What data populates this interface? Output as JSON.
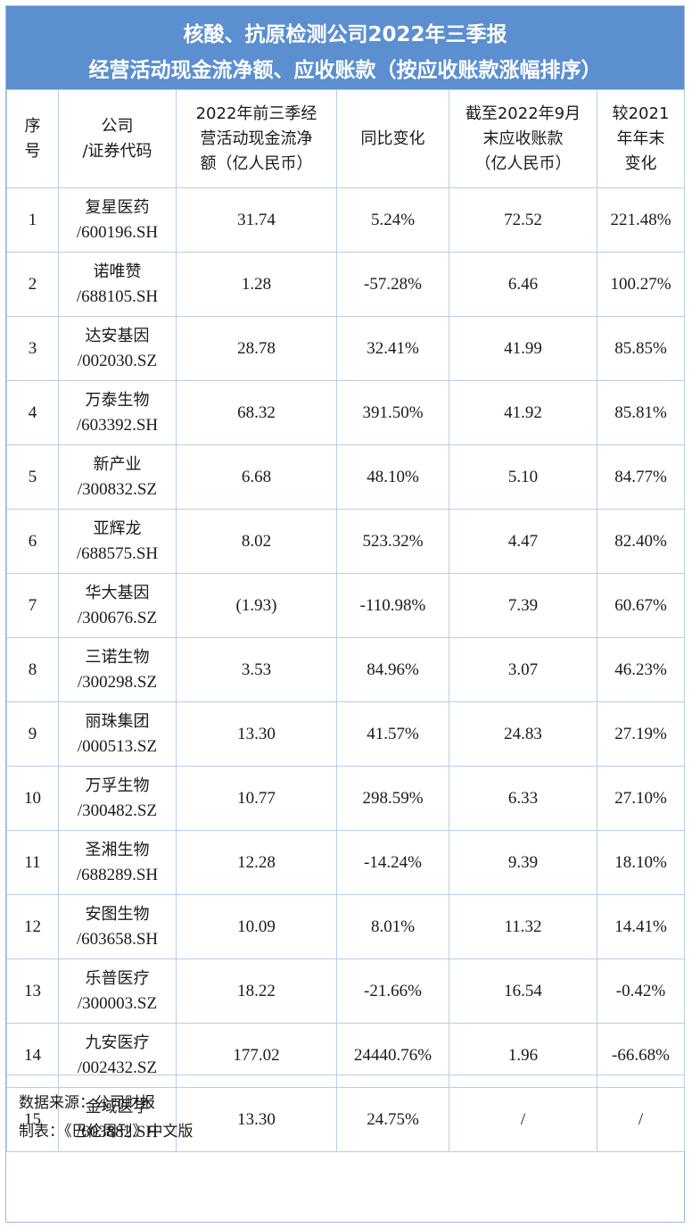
{
  "title": {
    "line1": "核酸、抗原检测公司2022年三季报",
    "line2": "经营活动现金流净额、应收账款（按应收账款涨幅排序）"
  },
  "headers": {
    "seq": [
      "序",
      "号"
    ],
    "company": [
      "公司",
      "/证券代码"
    ],
    "cashflow": [
      "2022年前三季经",
      "营活动现金流净",
      "额（亿人民币）"
    ],
    "yoy": [
      "同比变化"
    ],
    "receivables": [
      "截至2022年9月",
      "末应收账款",
      "（亿人民币）"
    ],
    "change": [
      "较2021",
      "年年末",
      "变化"
    ]
  },
  "rows": [
    {
      "seq": "1",
      "name": "复星医药",
      "code": "/600196.SH",
      "cashflow": "31.74",
      "yoy": "5.24%",
      "receivables": "72.52",
      "change": "221.48%"
    },
    {
      "seq": "2",
      "name": "诺唯赞",
      "code": "/688105.SH",
      "cashflow": "1.28",
      "yoy": "-57.28%",
      "receivables": "6.46",
      "change": "100.27%"
    },
    {
      "seq": "3",
      "name": "达安基因",
      "code": "/002030.SZ",
      "cashflow": "28.78",
      "yoy": "32.41%",
      "receivables": "41.99",
      "change": "85.85%"
    },
    {
      "seq": "4",
      "name": "万泰生物",
      "code": "/603392.SH",
      "cashflow": "68.32",
      "yoy": "391.50%",
      "receivables": "41.92",
      "change": "85.81%"
    },
    {
      "seq": "5",
      "name": "新产业",
      "code": "/300832.SZ",
      "cashflow": "6.68",
      "yoy": "48.10%",
      "receivables": "5.10",
      "change": "84.77%"
    },
    {
      "seq": "6",
      "name": "亚辉龙",
      "code": "/688575.SH",
      "cashflow": "8.02",
      "yoy": "523.32%",
      "receivables": "4.47",
      "change": "82.40%"
    },
    {
      "seq": "7",
      "name": "华大基因",
      "code": "/300676.SZ",
      "cashflow": "(1.93)",
      "yoy": "-110.98%",
      "receivables": "7.39",
      "change": "60.67%"
    },
    {
      "seq": "8",
      "name": "三诺生物",
      "code": "/300298.SZ",
      "cashflow": "3.53",
      "yoy": "84.96%",
      "receivables": "3.07",
      "change": "46.23%"
    },
    {
      "seq": "9",
      "name": "丽珠集团",
      "code": "/000513.SZ",
      "cashflow": "13.30",
      "yoy": "41.57%",
      "receivables": "24.83",
      "change": "27.19%"
    },
    {
      "seq": "10",
      "name": "万孚生物",
      "code": "/300482.SZ",
      "cashflow": "10.77",
      "yoy": "298.59%",
      "receivables": "6.33",
      "change": "27.10%"
    },
    {
      "seq": "11",
      "name": "圣湘生物",
      "code": "/688289.SH",
      "cashflow": "12.28",
      "yoy": "-14.24%",
      "receivables": "9.39",
      "change": "18.10%"
    },
    {
      "seq": "12",
      "name": "安图生物",
      "code": "/603658.SH",
      "cashflow": "10.09",
      "yoy": "8.01%",
      "receivables": "11.32",
      "change": "14.41%"
    },
    {
      "seq": "13",
      "name": "乐普医疗",
      "code": "/300003.SZ",
      "cashflow": "18.22",
      "yoy": "-21.66%",
      "receivables": "16.54",
      "change": "-0.42%"
    },
    {
      "seq": "14",
      "name": "九安医疗",
      "code": "/002432.SZ",
      "cashflow": "177.02",
      "yoy": "24440.76%",
      "receivables": "1.96",
      "change": "-66.68%"
    },
    {
      "seq": "15",
      "name": "金域医学",
      "code": "/603882.SH",
      "cashflow": "13.30",
      "yoy": "24.75%",
      "receivables": "/",
      "change": "/"
    }
  ],
  "footer": {
    "source": "数据来源：公司财报",
    "made_by": "制表：《巴伦周刊》中文版"
  },
  "colors": {
    "title_bg": "#5b8fcf",
    "title_text": "#ffffff",
    "grid_line": "#b7cde8"
  }
}
